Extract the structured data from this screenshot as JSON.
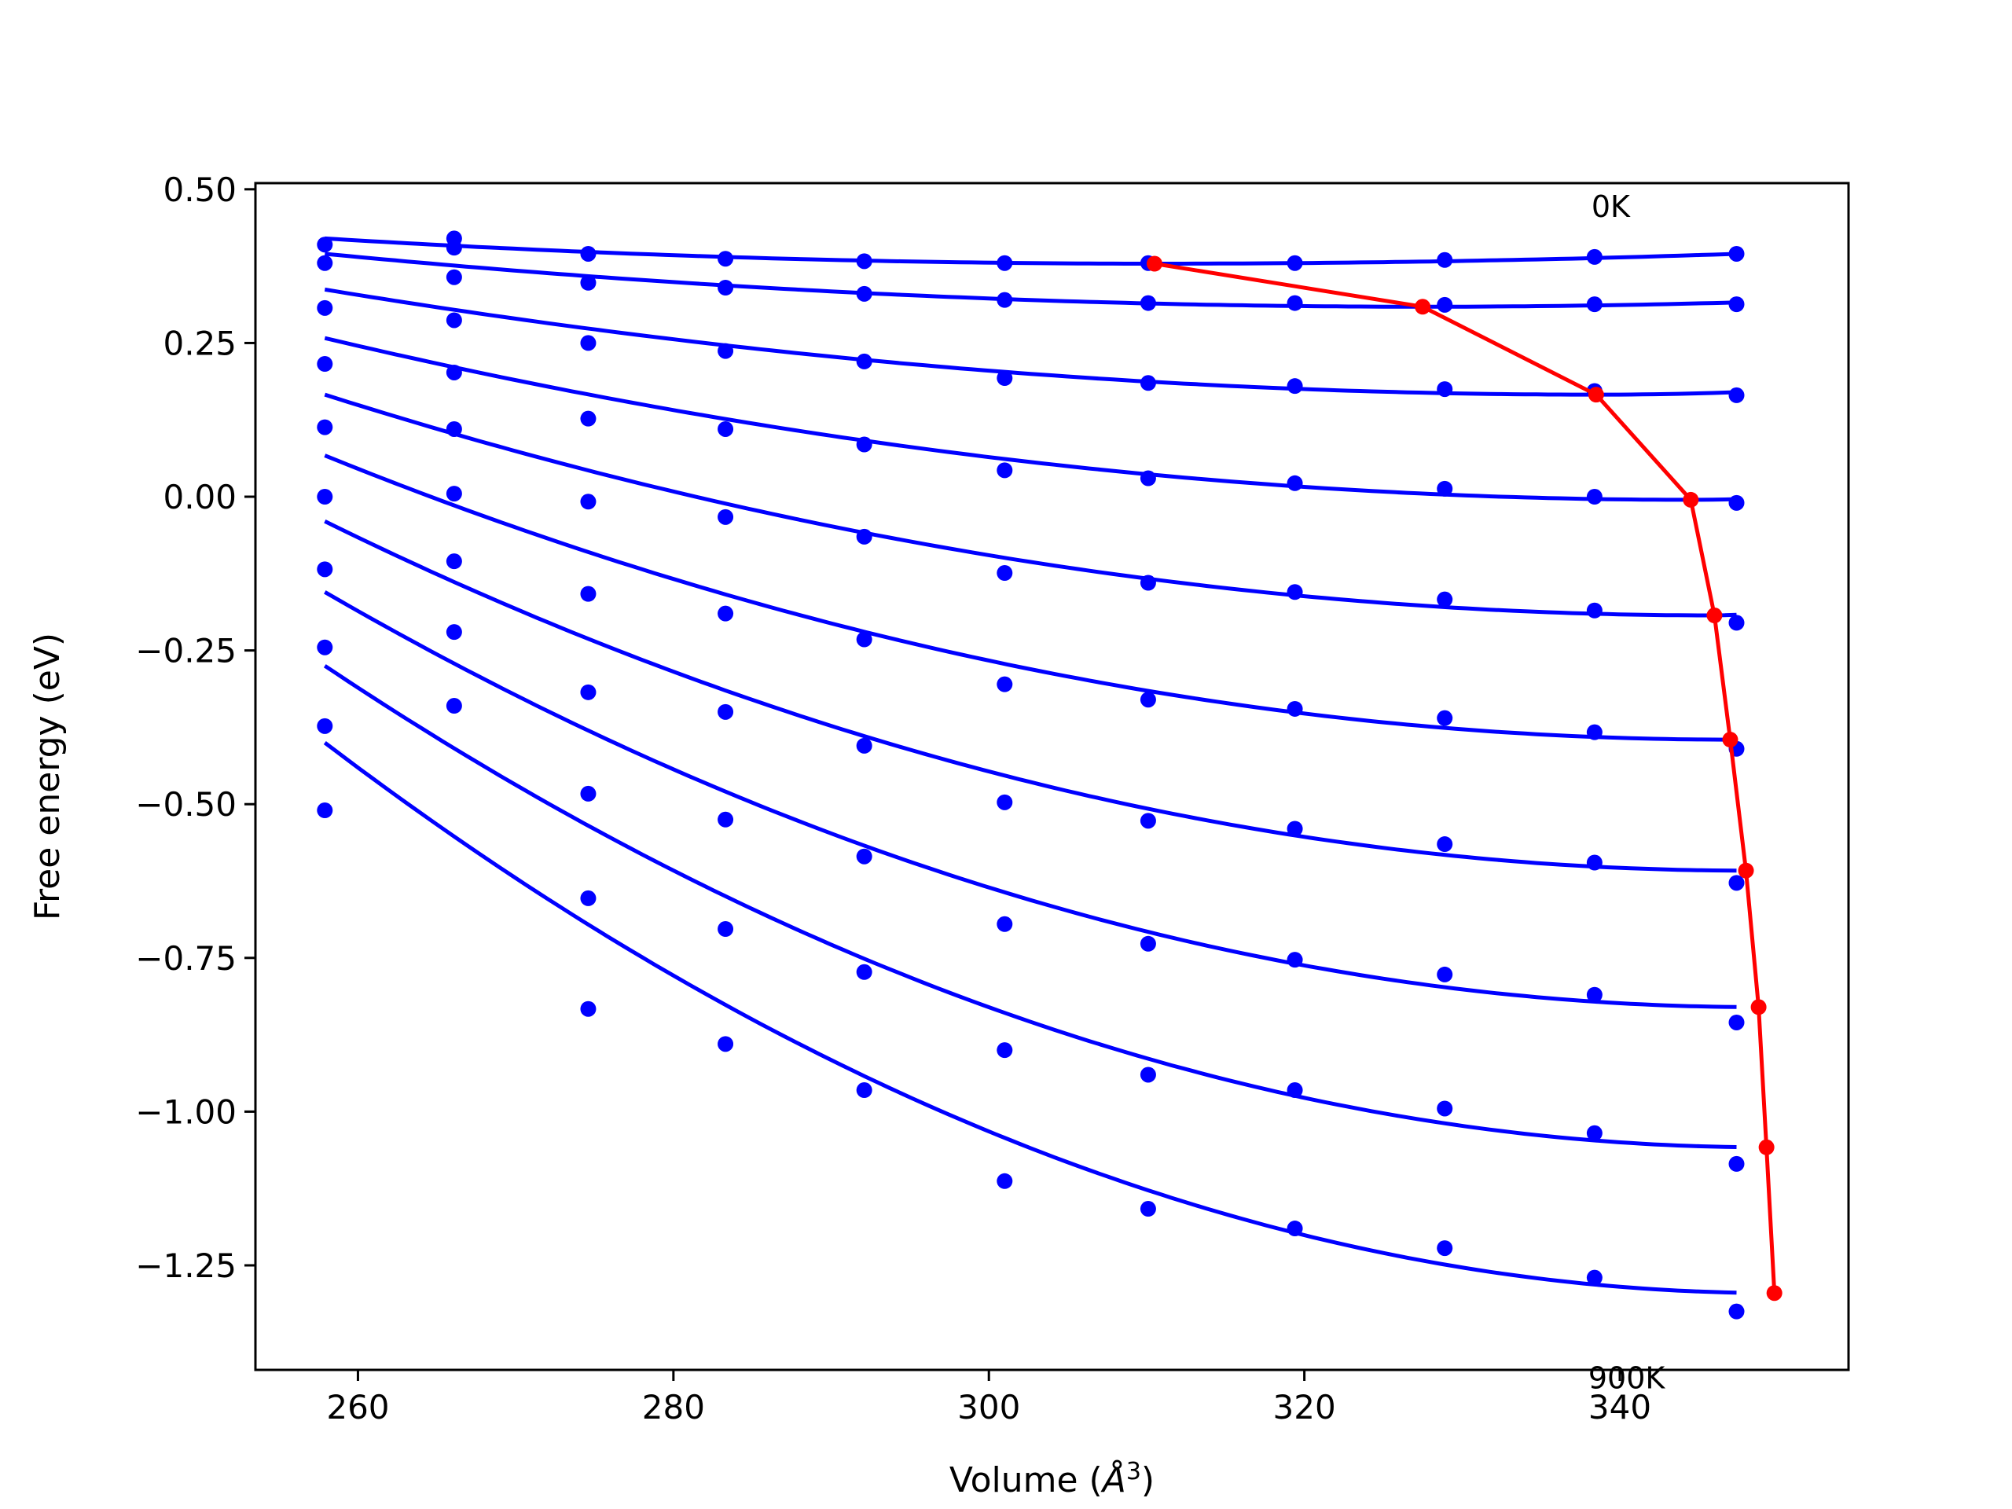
{
  "chart_data": {
    "type": "line",
    "xlabel_prefix": "Volume (",
    "xlabel_unit": "Å",
    "xlabel_exp": "3",
    "xlabel_suffix": ")",
    "ylabel": "Free energy (eV)",
    "xlim": [
      253.5,
      354.5
    ],
    "ylim": [
      -1.42,
      0.51
    ],
    "xticks": [
      260,
      280,
      300,
      320,
      340
    ],
    "yticks": [
      0.5,
      0.25,
      0.0,
      -0.25,
      -0.5,
      -0.75,
      -1.0,
      -1.25
    ],
    "ytick_labels": [
      "0.50",
      "0.25",
      "0.00",
      "−0.25",
      "−0.50",
      "−0.75",
      "−1.00",
      "−1.25"
    ],
    "grid": false,
    "colors": {
      "data": "#0000ff",
      "fit": "#0000ff",
      "minima": "#ff0000"
    },
    "annotations": [
      {
        "text": "0K",
        "x": 338.2,
        "y": 0.455
      },
      {
        "text": "900K",
        "x": 338.0,
        "y": -1.45
      }
    ],
    "x": [
      257.9,
      266.1,
      274.6,
      283.3,
      292.1,
      301.0,
      310.1,
      319.4,
      328.9,
      338.4,
      347.4
    ],
    "series": [
      {
        "values": [
          0.41,
          0.42,
          0.395,
          0.387,
          0.383,
          0.38,
          0.38,
          0.38,
          0.385,
          0.39,
          0.395
        ],
        "fit": {
          "x": [
            257.9,
            347.4
          ],
          "y": [
            0.42,
            0.395
          ],
          "vmin": 310.5,
          "fmin": 0.379
        }
      },
      {
        "values": [
          0.38,
          0.405,
          0.348,
          0.34,
          0.33,
          0.32,
          0.315,
          0.315,
          0.312,
          0.313,
          0.313
        ],
        "fit": {
          "x": [
            257.9,
            347.4
          ],
          "y": [
            0.395,
            0.316
          ],
          "vmin": 327.5,
          "fmin": 0.309
        }
      },
      {
        "values": [
          0.307,
          0.357,
          0.25,
          0.237,
          0.22,
          0.193,
          0.185,
          0.18,
          0.175,
          0.172,
          0.165
        ],
        "fit": {
          "x": [
            257.9,
            347.4
          ],
          "y": [
            0.337,
            0.17
          ],
          "vmin": 338.5,
          "fmin": 0.166
        }
      },
      {
        "values": [
          0.216,
          0.287,
          0.127,
          0.11,
          0.085,
          0.043,
          0.03,
          0.022,
          0.013,
          0.0,
          -0.01
        ],
        "fit": {
          "x": [
            257.9,
            347.4
          ],
          "y": [
            0.258,
            -0.004
          ],
          "vmin": 344.5,
          "fmin": -0.005
        }
      },
      {
        "values": [
          0.113,
          0.202,
          -0.008,
          -0.033,
          -0.065,
          -0.124,
          -0.14,
          -0.155,
          -0.167,
          -0.185,
          -0.205
        ],
        "fit": {
          "x": [
            257.9,
            347.4
          ],
          "y": [
            0.166,
            -0.192
          ],
          "vmin": 346.0,
          "fmin": -0.193
        }
      },
      {
        "values": [
          0.0,
          0.11,
          -0.158,
          -0.19,
          -0.232,
          -0.305,
          -0.33,
          -0.345,
          -0.36,
          -0.383,
          -0.41
        ],
        "fit": {
          "x": [
            257.9,
            347.4
          ],
          "y": [
            0.067,
            -0.395
          ],
          "vmin": 347.0,
          "fmin": -0.395
        }
      },
      {
        "values": [
          -0.118,
          0.005,
          -0.318,
          -0.35,
          -0.405,
          -0.497,
          -0.527,
          -0.54,
          -0.565,
          -0.595,
          -0.628
        ],
        "fit": {
          "x": [
            257.9,
            347.4
          ],
          "y": [
            -0.04,
            -0.608
          ],
          "vmin": 348.0,
          "fmin": -0.608
        }
      },
      {
        "values": [
          -0.245,
          -0.105,
          -0.483,
          -0.525,
          -0.585,
          -0.695,
          -0.727,
          -0.753,
          -0.777,
          -0.81,
          -0.855
        ],
        "fit": {
          "x": [
            257.9,
            347.4
          ],
          "y": [
            -0.155,
            -0.83
          ],
          "vmin": 348.8,
          "fmin": -0.83
        }
      },
      {
        "values": [
          -0.373,
          -0.22,
          -0.653,
          -0.703,
          -0.773,
          -0.9,
          -0.94,
          -0.965,
          -0.995,
          -1.035,
          -1.085
        ],
        "fit": {
          "x": [
            257.9,
            347.4
          ],
          "y": [
            -0.275,
            -1.058
          ],
          "vmin": 349.3,
          "fmin": -1.058
        }
      },
      {
        "values": [
          -0.51,
          -0.34,
          -0.833,
          -0.89,
          -0.965,
          -1.113,
          -1.158,
          -1.19,
          -1.222,
          -1.27,
          -1.325
        ],
        "fit": {
          "x": [
            257.9,
            347.4
          ],
          "y": [
            -0.4,
            -1.295
          ],
          "vmin": 349.8,
          "fmin": -1.295
        }
      }
    ],
    "minima_line": {
      "x": [
        310.5,
        327.5,
        338.5,
        344.5,
        346.0,
        347.0,
        348.0,
        348.8,
        349.3,
        349.8
      ],
      "y": [
        0.379,
        0.309,
        0.166,
        -0.005,
        -0.193,
        -0.395,
        -0.608,
        -0.83,
        -1.058,
        -1.295
      ]
    }
  }
}
